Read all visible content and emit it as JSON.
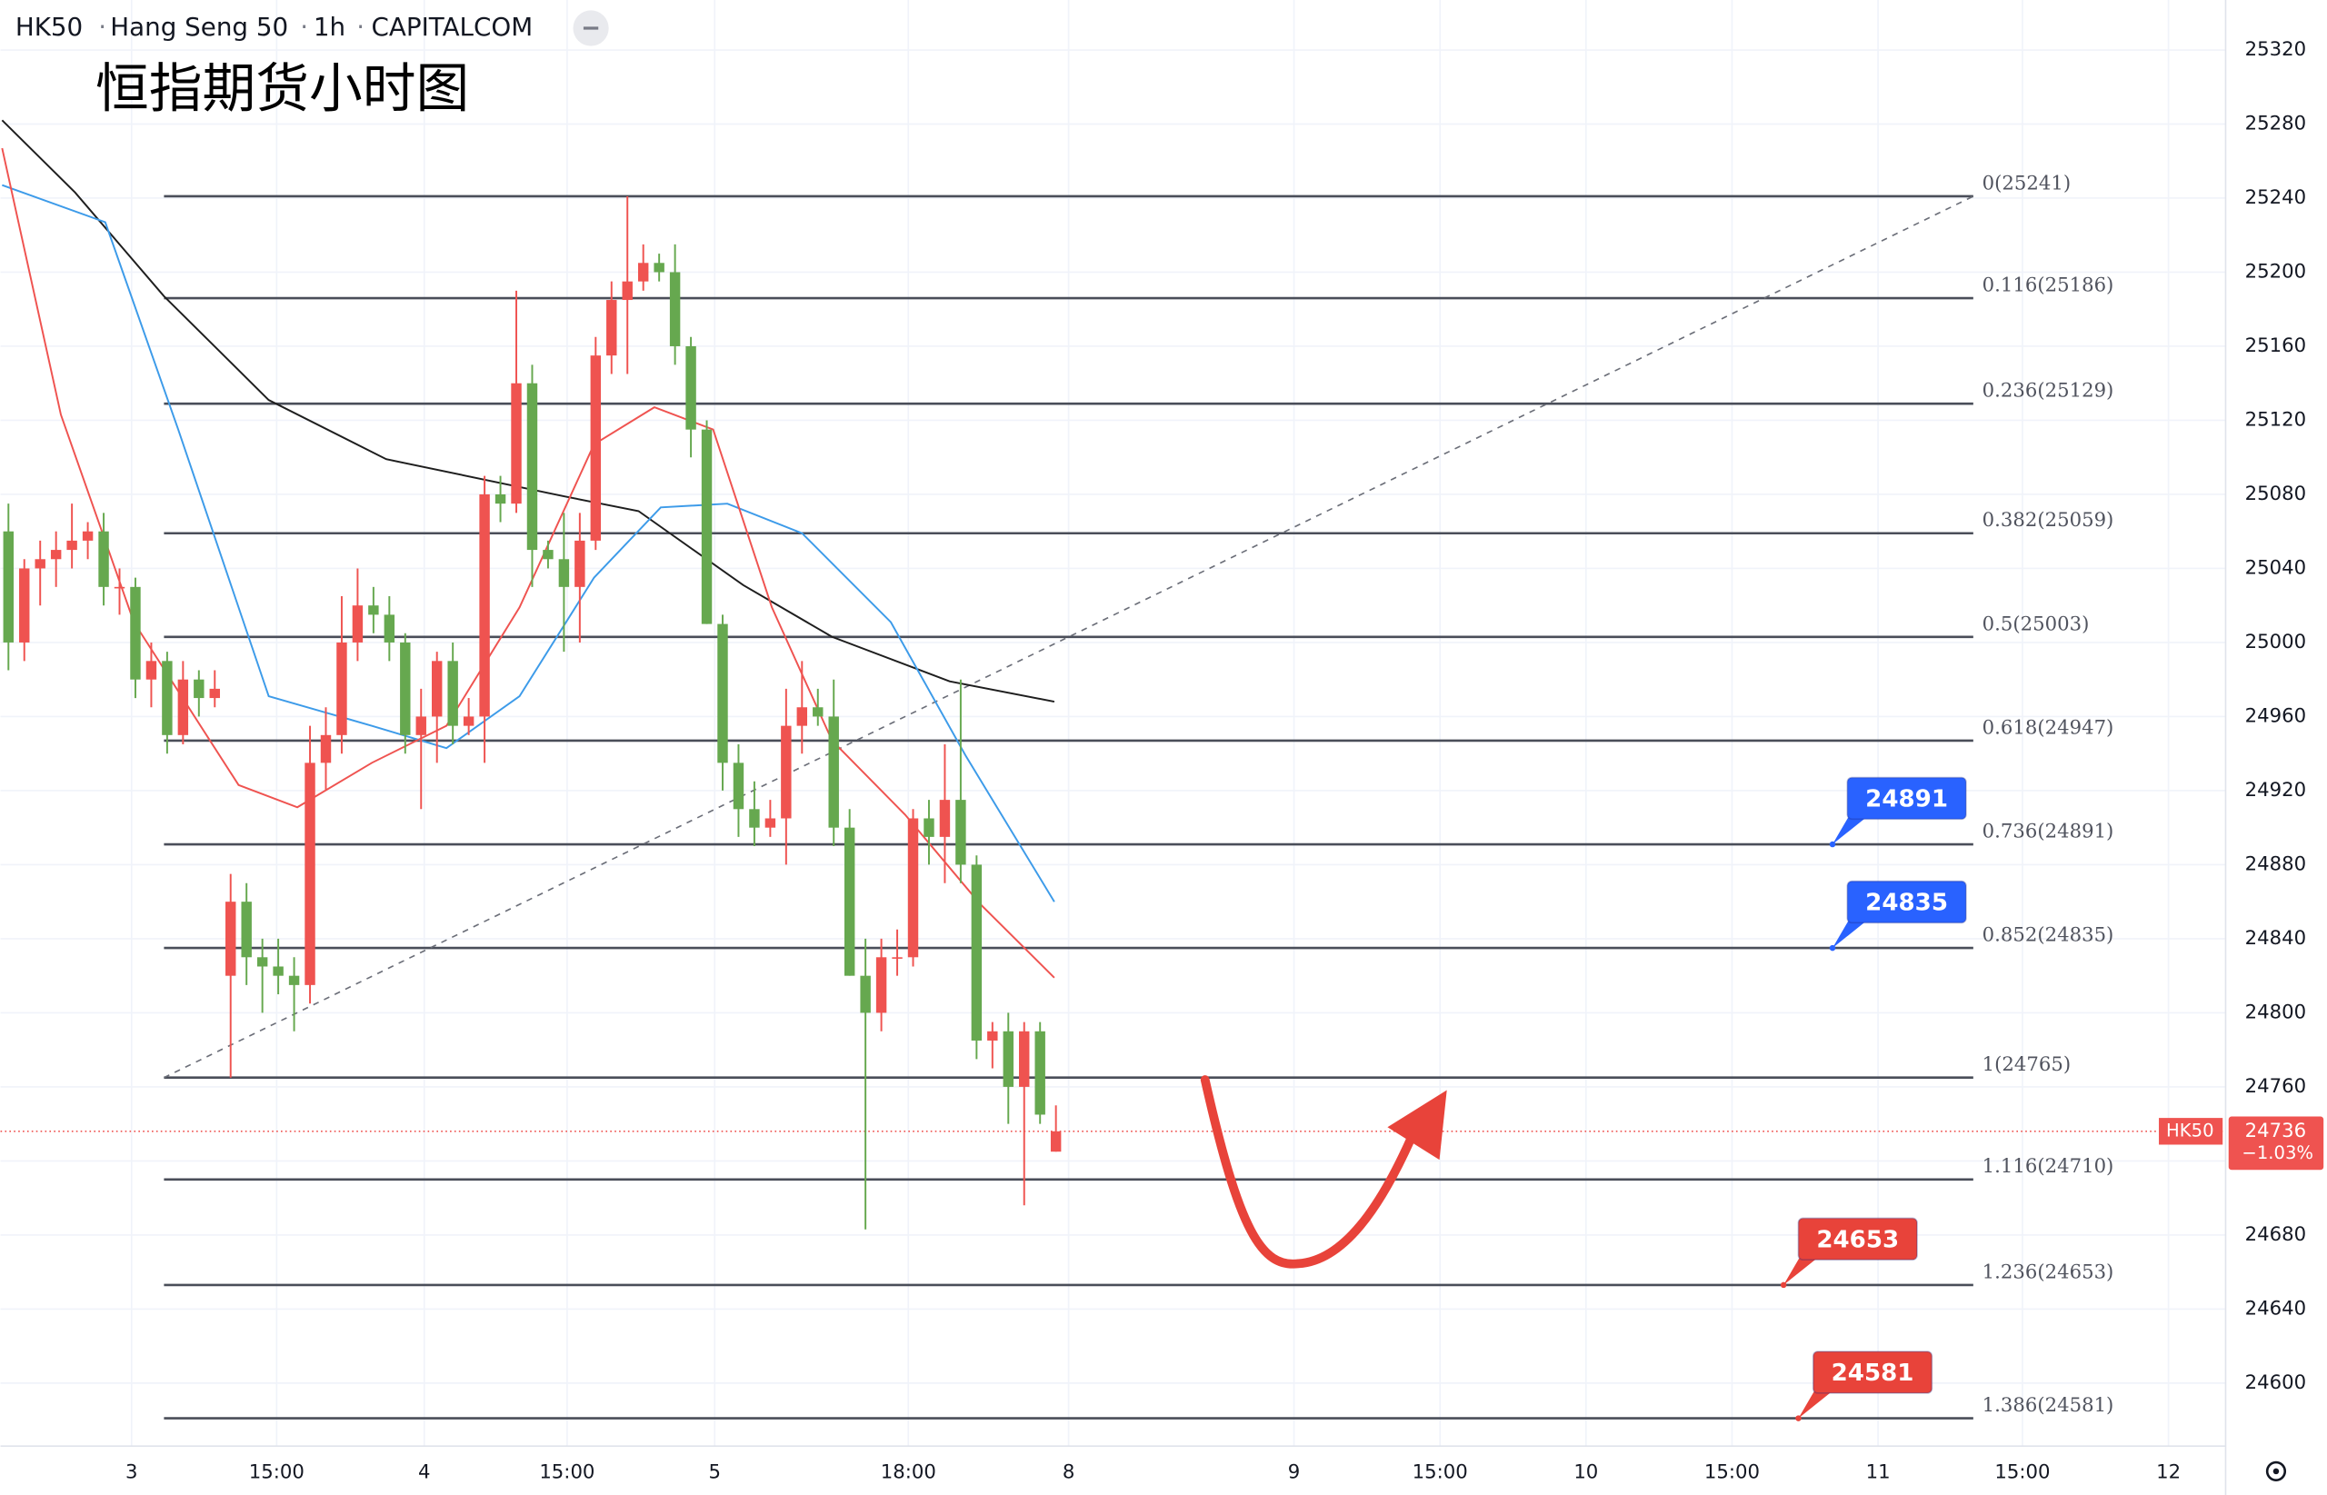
{
  "header": {
    "symbol_info": [
      "HK50",
      "Hang Seng 50",
      "1h",
      "CAPITALCOM"
    ],
    "title": "恒指期货小时图"
  },
  "chart_data": {
    "type": "candlestick",
    "up_color": "#ef5350",
    "down_color": "#66a84f",
    "open": [
      25060,
      25000,
      25040,
      25045,
      25050,
      25055,
      25060,
      25030,
      25030,
      24980,
      24990,
      24950,
      24980,
      24970,
      24820,
      24860,
      24830,
      24825,
      24820,
      24815,
      24935,
      24950,
      25000,
      25020,
      25015,
      25000,
      24950,
      24960,
      24990,
      24955,
      24960,
      25080,
      25075,
      25140,
      25050,
      25045,
      25030,
      25055,
      25155,
      25185,
      25195,
      25205,
      25200,
      25160,
      25115,
      25010,
      24935,
      24910,
      24900,
      24905,
      24955,
      24965,
      24960,
      24900,
      24820,
      24800,
      24830,
      24830,
      24905,
      24895,
      24915,
      24880,
      24785,
      24790,
      24760,
      24790,
      24725
    ],
    "high": [
      25075,
      25045,
      25055,
      25060,
      25075,
      25065,
      25070,
      25040,
      25035,
      25000,
      24995,
      24990,
      24985,
      24985,
      24875,
      24870,
      24840,
      24840,
      24830,
      24955,
      24965,
      25025,
      25040,
      25030,
      25025,
      25005,
      24975,
      24995,
      25000,
      24970,
      25090,
      25090,
      25190,
      25150,
      25055,
      25070,
      25070,
      25165,
      25195,
      25241,
      25215,
      25210,
      25215,
      25165,
      25120,
      25015,
      24945,
      24925,
      24915,
      24975,
      24990,
      24975,
      24980,
      24910,
      24840,
      24840,
      24845,
      24910,
      24915,
      24945,
      24980,
      24885,
      24795,
      24800,
      24795,
      24795,
      24750
    ],
    "low": [
      24985,
      24990,
      25020,
      25030,
      25040,
      25045,
      25020,
      25015,
      24970,
      24965,
      24940,
      24945,
      24960,
      24965,
      24765,
      24815,
      24800,
      24810,
      24790,
      24805,
      24920,
      24940,
      24990,
      25005,
      24990,
      24940,
      24910,
      24935,
      24945,
      24950,
      24935,
      25065,
      25070,
      25030,
      25040,
      24995,
      25000,
      25050,
      25145,
      25145,
      25190,
      25195,
      25150,
      25100,
      25010,
      24920,
      24895,
      24890,
      24895,
      24880,
      24940,
      24955,
      24890,
      24820,
      24683,
      24790,
      24820,
      24825,
      24880,
      24870,
      24870,
      24775,
      24770,
      24740,
      24696,
      24740,
      24725
    ],
    "close": [
      25000,
      25040,
      25045,
      25050,
      25055,
      25060,
      25030,
      25030,
      24980,
      24990,
      24950,
      24980,
      24970,
      24975,
      24860,
      24830,
      24825,
      24820,
      24815,
      24935,
      24950,
      25000,
      25020,
      25015,
      25000,
      24950,
      24960,
      24990,
      24955,
      24960,
      25080,
      25075,
      25140,
      25050,
      25045,
      25030,
      25055,
      25155,
      25185,
      25195,
      25205,
      25200,
      25160,
      25115,
      25010,
      24935,
      24910,
      24900,
      24905,
      24955,
      24965,
      24960,
      24900,
      24820,
      24800,
      24830,
      24830,
      24905,
      24895,
      24915,
      24880,
      24785,
      24790,
      24760,
      24790,
      24745,
      24736
    ],
    "ma_lines": [
      {
        "color": "#1e1e1e",
        "x": [
          -0.4,
          4.2,
          9.8,
          16.4,
          23.8,
          35.0,
          39.7,
          46.3,
          51.9,
          59.3,
          65.9
        ],
        "values": [
          25282,
          25243,
          25187,
          25131,
          25099,
          25079,
          25071,
          25031,
          25003,
          24979,
          24968
        ]
      },
      {
        "color": "#3d9be9",
        "x": [
          -0.4,
          6.1,
          10.7,
          16.4,
          22.9,
          27.6,
          32.2,
          36.9,
          41.1,
          45.3,
          50.0,
          55.6,
          60.3,
          65.9
        ],
        "values": [
          25247,
          25227,
          25115,
          24971,
          24955,
          24943,
          24971,
          25035,
          25073,
          25075,
          25059,
          25011,
          24939,
          24860
        ]
      },
      {
        "color": "#ef5350",
        "x": [
          -0.4,
          3.3,
          7.9,
          14.5,
          18.2,
          22.9,
          27.6,
          32.2,
          36.9,
          40.7,
          44.4,
          48.1,
          51.9,
          56.5,
          61.2,
          65.9
        ],
        "values": [
          25267,
          25123,
          25011,
          24923,
          24911,
          24935,
          24955,
          25019,
          25107,
          25127,
          25115,
          25019,
          24947,
          24907,
          24859,
          24819
        ]
      }
    ],
    "trend_line": {
      "x": [
        9.8,
        123.8
      ],
      "values": [
        24765,
        25241
      ]
    },
    "fib_levels": [
      {
        "value": 25241,
        "label": "0(25241)"
      },
      {
        "value": 25186,
        "label": "0.116(25186)"
      },
      {
        "value": 25129,
        "label": "0.236(25129)"
      },
      {
        "value": 25059,
        "label": "0.382(25059)"
      },
      {
        "value": 25003,
        "label": "0.5(25003)"
      },
      {
        "value": 24947,
        "label": "0.618(24947)"
      },
      {
        "value": 24891,
        "label": "0.736(24891)"
      },
      {
        "value": 24835,
        "label": "0.852(24835)"
      },
      {
        "value": 24765,
        "label": "1(24765)"
      },
      {
        "value": 24710,
        "label": "1.116(24710)"
      },
      {
        "value": 24653,
        "label": "1.236(24653)"
      },
      {
        "value": 24581,
        "label": "1.386(24581)"
      }
    ],
    "callouts": [
      {
        "value": 24891,
        "color": "#2962ff"
      },
      {
        "value": 24835,
        "color": "#2962ff"
      },
      {
        "value": 24653,
        "color": "#e8433a"
      },
      {
        "value": 24581,
        "color": "#e8433a"
      }
    ],
    "last_price": {
      "symbol": "HK50",
      "value": 24736,
      "change": "−1.03%",
      "color": "#ef5350"
    },
    "xlim": [
      -0.5,
      139.7
    ],
    "xticks": [
      {
        "value": 7.76,
        "label": "3"
      },
      {
        "value": 16.9,
        "label": "15:00"
      },
      {
        "value": 26.2,
        "label": "4"
      },
      {
        "value": 35.2,
        "label": "15:00"
      },
      {
        "value": 44.5,
        "label": "5"
      },
      {
        "value": 56.7,
        "label": "18:00"
      },
      {
        "value": 66.8,
        "label": "8"
      },
      {
        "value": 81.0,
        "label": "9"
      },
      {
        "value": 90.2,
        "label": "15:00"
      },
      {
        "value": 99.4,
        "label": "10"
      },
      {
        "value": 108.6,
        "label": "15:00"
      },
      {
        "value": 117.8,
        "label": "11"
      },
      {
        "value": 126.9,
        "label": "15:00"
      },
      {
        "value": 136.1,
        "label": "12"
      }
    ],
    "ylim": [
      24566,
      25347
    ],
    "yticks": [
      24600,
      24640,
      24680,
      24720,
      24760,
      24800,
      24840,
      24880,
      24920,
      24960,
      25000,
      25040,
      25080,
      25120,
      25160,
      25200,
      25240,
      25280,
      25320
    ],
    "grid": true
  }
}
